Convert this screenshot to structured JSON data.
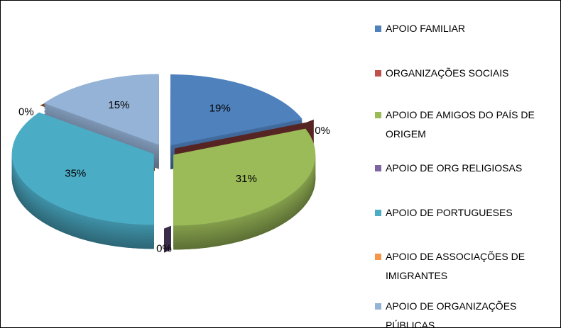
{
  "chart_data": {
    "type": "pie3d",
    "categories": [
      "APOIO FAMILIAR",
      "ORGANIZAÇÕES SOCIAIS",
      "APOIO DE AMIGOS DO PAÍS DE ORIGEM",
      "APOIO DE ORG RELIGIOSAS",
      "APOIO DE PORTUGUESES",
      "APOIO DE ASSOCIAÇÕES DE IMIGRANTES",
      "APOIO DE ORGANIZAÇÕES PÚBLICAS"
    ],
    "values": [
      19,
      0,
      31,
      0,
      35,
      0,
      15
    ],
    "value_labels": [
      "19%",
      "0%",
      "31%",
      "0%",
      "35%",
      "0%",
      "15%"
    ],
    "colors": [
      "#4f81bd",
      "#c0504d",
      "#9bbb59",
      "#8064a2",
      "#4bacc6",
      "#f79646",
      "#95b3d7"
    ],
    "legend": "right"
  }
}
